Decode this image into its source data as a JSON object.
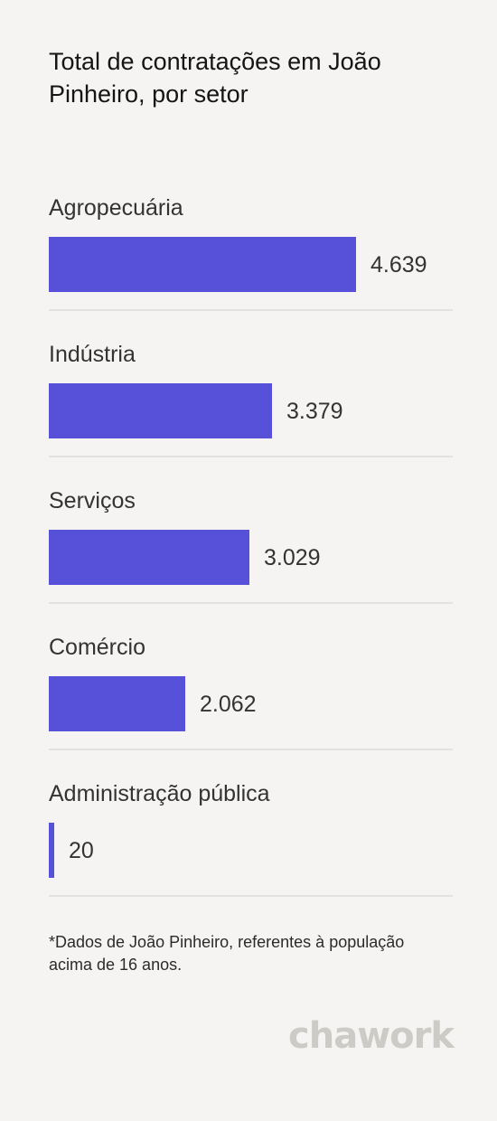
{
  "title": "Total de contratações em João Pinheiro, por setor",
  "chart_data": {
    "type": "bar",
    "orientation": "horizontal",
    "categories": [
      "Agropecuária",
      "Indústria",
      "Serviços",
      "Comércio",
      "Administração pública"
    ],
    "values": [
      4639,
      3379,
      3029,
      2062,
      20
    ],
    "value_labels": [
      "4.639",
      "3.379",
      "3.029",
      "2.062",
      "20"
    ],
    "title": "Total de contratações em João Pinheiro, por setor",
    "xlabel": "",
    "ylabel": "",
    "grid": false,
    "legend": "none",
    "bar_color": "#5751d9"
  },
  "footnote": "*Dados de João Pinheiro, referentes à população acima de 16 anos.",
  "brand": {
    "logo_text": "chawork",
    "logo_color": "#cdcbc6"
  }
}
